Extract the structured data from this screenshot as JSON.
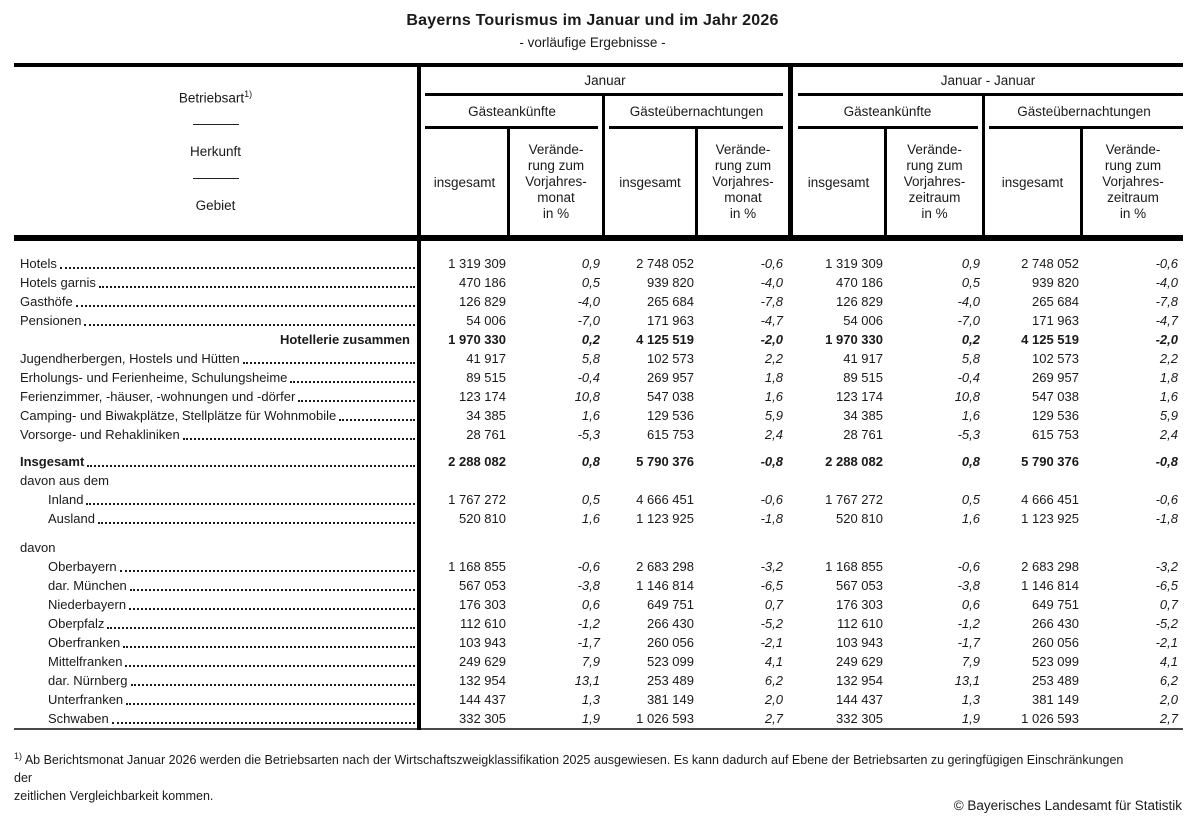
{
  "title": "Bayerns Tourismus im Januar und im Jahr 2026",
  "subtitle": "- vorläufige Ergebnisse -",
  "stub": {
    "betriebsart": "Betriebsart",
    "footnote_marker": "1)",
    "herkunft": "Herkunft",
    "gebiet": "Gebiet"
  },
  "header": {
    "period_month": "Januar",
    "period_range": "Januar - Januar",
    "arrivals": "Gästeankünfte",
    "overnights": "Gästeübernachtungen",
    "total": "insgesamt",
    "change_month": "Verände-\nrung zum\nVorjahres-\nmonat\nin %",
    "change_period": "Verände-\nrung zum\nVorjahres-\nzeitraum\nin %"
  },
  "table": {
    "rows": [
      {
        "label": "Hotels",
        "style": "normal",
        "indent": 0,
        "values": [
          "1 319 309",
          "0,9",
          "2 748 052",
          "-0,6",
          "1 319 309",
          "0,9",
          "2 748 052",
          "-0,6"
        ]
      },
      {
        "label": "Hotels garnis",
        "style": "normal",
        "indent": 0,
        "values": [
          "470 186",
          "0,5",
          "939 820",
          "-4,0",
          "470 186",
          "0,5",
          "939 820",
          "-4,0"
        ]
      },
      {
        "label": "Gasthöfe",
        "style": "normal",
        "indent": 0,
        "values": [
          "126 829",
          "-4,0",
          "265 684",
          "-7,8",
          "126 829",
          "-4,0",
          "265 684",
          "-7,8"
        ]
      },
      {
        "label": "Pensionen",
        "style": "normal",
        "indent": 0,
        "values": [
          "54 006",
          "-7,0",
          "171 963",
          "-4,7",
          "54 006",
          "-7,0",
          "171 963",
          "-4,7"
        ]
      },
      {
        "label": "Hotellerie zusammen",
        "style": "sum",
        "indent": 0,
        "values": [
          "1 970 330",
          "0,2",
          "4 125 519",
          "-2,0",
          "1 970 330",
          "0,2",
          "4 125 519",
          "-2,0"
        ]
      },
      {
        "label": "Jugendherbergen, Hostels und Hütten",
        "style": "normal",
        "indent": 0,
        "values": [
          "41 917",
          "5,8",
          "102 573",
          "2,2",
          "41 917",
          "5,8",
          "102 573",
          "2,2"
        ]
      },
      {
        "label": "Erholungs- und Ferienheime, Schulungsheime",
        "style": "normal",
        "indent": 0,
        "values": [
          "89 515",
          "-0,4",
          "269 957",
          "1,8",
          "89 515",
          "-0,4",
          "269 957",
          "1,8"
        ]
      },
      {
        "label": "Ferienzimmer, -häuser, -wohnungen und -dörfer",
        "style": "normal",
        "indent": 0,
        "values": [
          "123 174",
          "10,8",
          "547 038",
          "1,6",
          "123 174",
          "10,8",
          "547 038",
          "1,6"
        ]
      },
      {
        "label": "Camping- und Biwakplätze, Stellplätze für Wohnmobile",
        "style": "normal",
        "indent": 0,
        "values": [
          "34 385",
          "1,6",
          "129 536",
          "5,9",
          "34 385",
          "1,6",
          "129 536",
          "5,9"
        ]
      },
      {
        "label": "Vorsorge- und Rehakliniken",
        "style": "normal",
        "indent": 0,
        "values": [
          "28 761",
          "-5,3",
          "615 753",
          "2,4",
          "28 761",
          "-5,3",
          "615 753",
          "2,4"
        ]
      },
      {
        "style": "spacer",
        "h": 8
      },
      {
        "label": "Insgesamt",
        "style": "total",
        "indent": 0,
        "values": [
          "2 288 082",
          "0,8",
          "5 790 376",
          "-0,8",
          "2 288 082",
          "0,8",
          "5 790 376",
          "-0,8"
        ]
      },
      {
        "label": "davon aus dem",
        "style": "plain",
        "indent": 0
      },
      {
        "label": "Inland",
        "style": "normal",
        "indent": 1,
        "values": [
          "1 767 272",
          "0,5",
          "4 666 451",
          "-0,6",
          "1 767 272",
          "0,5",
          "4 666 451",
          "-0,6"
        ]
      },
      {
        "label": "Ausland",
        "style": "normal",
        "indent": 1,
        "values": [
          "520 810",
          "1,6",
          "1 123 925",
          "-1,8",
          "520 810",
          "1,6",
          "1 123 925",
          "-1,8"
        ]
      },
      {
        "style": "spacer",
        "h": 10
      },
      {
        "label": "davon",
        "style": "plain",
        "indent": 0
      },
      {
        "label": "Oberbayern",
        "style": "normal",
        "indent": 1,
        "values": [
          "1 168 855",
          "-0,6",
          "2 683 298",
          "-3,2",
          "1 168 855",
          "-0,6",
          "2 683 298",
          "-3,2"
        ]
      },
      {
        "label": "dar. München",
        "style": "normal",
        "indent": 1,
        "values": [
          "567 053",
          "-3,8",
          "1 146 814",
          "-6,5",
          "567 053",
          "-3,8",
          "1 146 814",
          "-6,5"
        ]
      },
      {
        "label": "Niederbayern",
        "style": "normal",
        "indent": 1,
        "values": [
          "176 303",
          "0,6",
          "649 751",
          "0,7",
          "176 303",
          "0,6",
          "649 751",
          "0,7"
        ]
      },
      {
        "label": "Oberpfalz",
        "style": "normal",
        "indent": 1,
        "values": [
          "112 610",
          "-1,2",
          "266 430",
          "-5,2",
          "112 610",
          "-1,2",
          "266 430",
          "-5,2"
        ]
      },
      {
        "label": "Oberfranken",
        "style": "normal",
        "indent": 1,
        "values": [
          "103 943",
          "-1,7",
          "260 056",
          "-2,1",
          "103 943",
          "-1,7",
          "260 056",
          "-2,1"
        ]
      },
      {
        "label": "Mittelfranken",
        "style": "normal",
        "indent": 1,
        "values": [
          "249 629",
          "7,9",
          "523 099",
          "4,1",
          "249 629",
          "7,9",
          "523 099",
          "4,1"
        ]
      },
      {
        "label": "dar. Nürnberg",
        "style": "normal",
        "indent": 1,
        "values": [
          "132 954",
          "13,1",
          "253 489",
          "6,2",
          "132 954",
          "13,1",
          "253 489",
          "6,2"
        ]
      },
      {
        "label": "Unterfranken",
        "style": "normal",
        "indent": 1,
        "values": [
          "144 437",
          "1,3",
          "381 149",
          "2,0",
          "144 437",
          "1,3",
          "381 149",
          "2,0"
        ]
      },
      {
        "label": "Schwaben",
        "style": "normal",
        "indent": 1,
        "values": [
          "332 305",
          "1,9",
          "1 026 593",
          "2,7",
          "332 305",
          "1,9",
          "1 026 593",
          "2,7"
        ]
      }
    ]
  },
  "footnote": {
    "marker": "1)",
    "text": "Ab Berichtsmonat Januar 2026 werden die Betriebsarten nach der Wirtschaftszweigklassifikation 2025 ausgewiesen. Es kann dadurch auf Ebene der Betriebsarten zu geringfügigen Einschränkungen der\nzeitlichen Vergleichbarkeit kommen."
  },
  "copyright": "© Bayerisches Landesamt für Statistik"
}
